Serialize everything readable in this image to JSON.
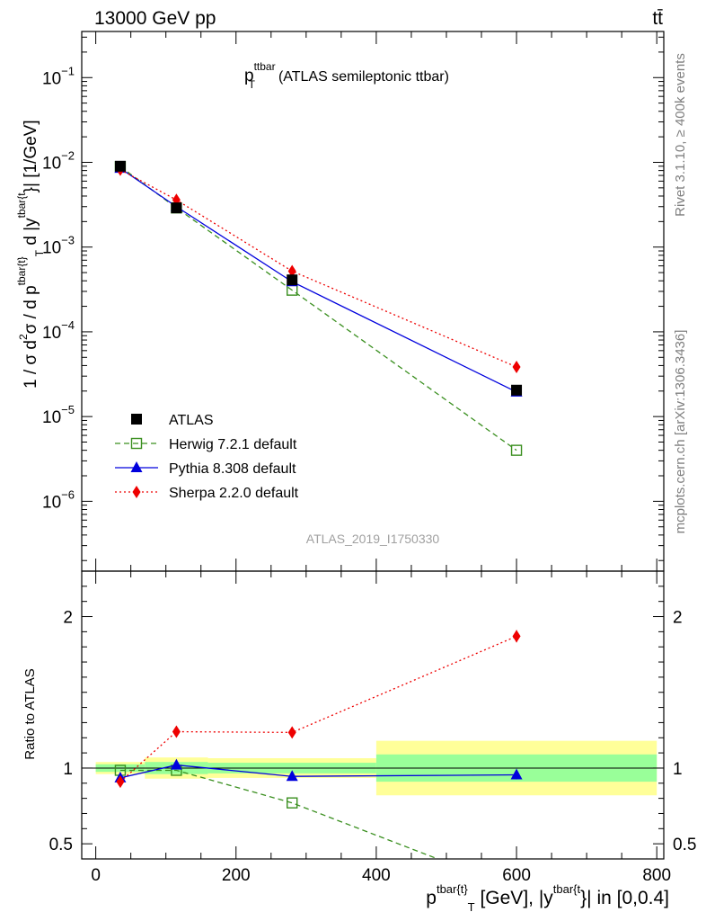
{
  "header": {
    "left": "13000 GeV pp",
    "right": "tt̄"
  },
  "side_labels": {
    "rivet": "Rivet 3.1.10, ≥ 400k events",
    "mcplots": "mcplots.cern.ch [arXiv:1306.3436]"
  },
  "analysis_id": "ATLAS_2019_I1750330",
  "colors": {
    "data": "#000000",
    "herwig": "#3a8f1f",
    "pythia": "#0000dd",
    "sherpa": "#ee0000",
    "band_inner": "#99ff99",
    "band_outer": "#ffff99"
  },
  "chart_data": [
    {
      "type": "line",
      "title_main": "p",
      "title_sup": "ttbar",
      "title_sub": "T",
      "title_rest": "(ATLAS semileptonic ttbar)",
      "ylabel": "1 / σ d²σ / d p^{tbar{t}}_T d |y^{tbar{t}}| [1/GeV]",
      "ylabel_parts": {
        "a": "1 / σ d",
        "b": "2",
        "c": "σ / d p",
        "d": "tbar{t",
        "e": "}",
        "f": "T",
        "g": " d |y",
        "h": "tbar{t",
        "i": "}| [1/GeV]"
      },
      "yscale": "log",
      "ylim": [
        1.5e-07,
        0.35
      ],
      "xlim": [
        -20,
        810
      ],
      "y_ticks": [
        {
          "value": 1e-06,
          "base": "10",
          "exp": "−6"
        },
        {
          "value": 1e-05,
          "base": "10",
          "exp": "−5"
        },
        {
          "value": 0.0001,
          "base": "10",
          "exp": "−4"
        },
        {
          "value": 0.001,
          "base": "10",
          "exp": "−3"
        },
        {
          "value": 0.01,
          "base": "10",
          "exp": "−2"
        },
        {
          "value": 0.1,
          "base": "10",
          "exp": "−1"
        }
      ],
      "legend_position": "bottom-left",
      "series": [
        {
          "key": "data",
          "name": "ATLAS",
          "style": "marker",
          "marker": "square-filled",
          "x": [
            35,
            115,
            280,
            600
          ],
          "y": [
            0.009,
            0.0029,
            0.00041,
            2.05e-05
          ]
        },
        {
          "key": "herwig",
          "name": "Herwig 7.2.1 default",
          "style": "dashed",
          "marker": "square-open",
          "x": [
            35,
            115,
            280,
            600
          ],
          "y": [
            0.0089,
            0.0029,
            0.00031,
            4e-06
          ]
        },
        {
          "key": "pythia",
          "name": "Pythia 8.308 default",
          "style": "solid",
          "marker": "triangle",
          "x": [
            35,
            115,
            280,
            600
          ],
          "y": [
            0.0085,
            0.003,
            0.00039,
            1.95e-05
          ]
        },
        {
          "key": "sherpa",
          "name": "Sherpa 2.2.0 default",
          "style": "dotted",
          "marker": "diamond",
          "x": [
            35,
            115,
            280,
            600
          ],
          "y": [
            0.0082,
            0.0036,
            0.00052,
            3.85e-05
          ]
        }
      ]
    },
    {
      "type": "line",
      "ylabel": "Ratio to ATLAS",
      "xlabel_parts": {
        "a": "p",
        "b": "tbar{t",
        "c": "}",
        "d": "T",
        "e": " [GeV], |y",
        "f": "tbar{t",
        "g": "}| in [0,0.4]"
      },
      "ylim": [
        0.4,
        2.3
      ],
      "xlim": [
        -20,
        810
      ],
      "x_ticks": [
        0,
        200,
        400,
        600,
        800
      ],
      "y_ticks": [
        0.5,
        1,
        2
      ],
      "y_tick_labels": [
        "0.5",
        "1",
        "2"
      ],
      "bands": [
        {
          "x0": 0,
          "x1": 70,
          "inner": [
            0.975,
            1.025
          ],
          "outer": [
            0.96,
            1.04
          ]
        },
        {
          "x0": 70,
          "x1": 160,
          "inner": [
            0.96,
            1.04
          ],
          "outer": [
            0.93,
            1.07
          ]
        },
        {
          "x0": 160,
          "x1": 400,
          "inner": [
            0.965,
            1.035
          ],
          "outer": [
            0.935,
            1.065
          ]
        },
        {
          "x0": 400,
          "x1": 800,
          "inner": [
            0.91,
            1.09
          ],
          "outer": [
            0.82,
            1.18
          ]
        }
      ],
      "series": [
        {
          "key": "herwig",
          "x": [
            35,
            115,
            280,
            600
          ],
          "y": [
            0.985,
            0.985,
            0.77,
            0.2
          ]
        },
        {
          "key": "pythia",
          "x": [
            35,
            115,
            280,
            600
          ],
          "y": [
            0.935,
            1.02,
            0.945,
            0.955
          ]
        },
        {
          "key": "sherpa",
          "x": [
            35,
            115,
            280,
            600
          ],
          "y": [
            0.91,
            1.24,
            1.235,
            1.87
          ]
        }
      ]
    }
  ]
}
